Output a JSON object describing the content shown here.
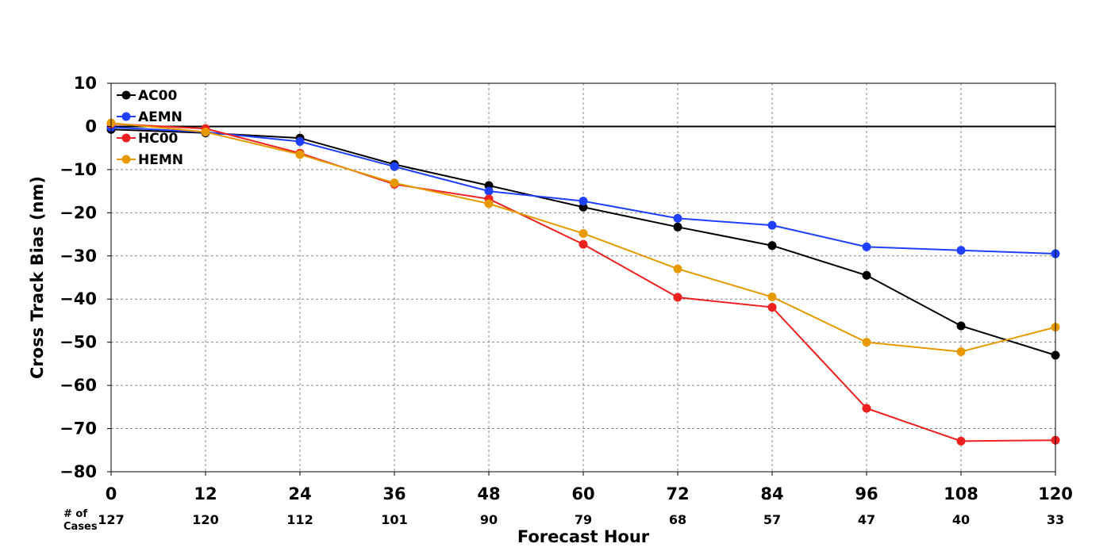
{
  "chart_data": {
    "type": "line",
    "title": "",
    "xlabel": "Forecast Hour",
    "ylabel": "Cross Track Bias (nm)",
    "x": [
      0,
      12,
      24,
      36,
      48,
      60,
      72,
      84,
      96,
      108,
      120
    ],
    "x_tick_labels": [
      "0",
      "12",
      "24",
      "36",
      "48",
      "60",
      "72",
      "84",
      "96",
      "108",
      "120"
    ],
    "xlim": [
      0,
      120
    ],
    "ylim": [
      -80,
      10
    ],
    "y_ticks": [
      10,
      0,
      -10,
      -20,
      -30,
      -40,
      -50,
      -60,
      -70,
      -80
    ],
    "y_tick_labels": [
      "10",
      "0",
      "−10",
      "−20",
      "−30",
      "−40",
      "−50",
      "−60",
      "−70",
      "−80"
    ],
    "grid": true,
    "legend_position": "top-left",
    "cases_label": [
      "# of",
      "Cases"
    ],
    "cases": [
      "127",
      "120",
      "112",
      "101",
      "90",
      "79",
      "68",
      "57",
      "47",
      "40",
      "33"
    ],
    "series": [
      {
        "name": "AC00",
        "color": "#000000",
        "values": [
          -0.7,
          -1.5,
          -2.7,
          -8.8,
          -13.7,
          -18.7,
          -23.3,
          -27.6,
          -34.5,
          -46.2,
          -53.0
        ]
      },
      {
        "name": "AEMN",
        "color": "#2040ff",
        "values": [
          -0.2,
          -1.3,
          -3.5,
          -9.3,
          -15.0,
          -17.3,
          -21.3,
          -22.9,
          -27.9,
          -28.7,
          -29.5
        ]
      },
      {
        "name": "HC00",
        "color": "#ee2020",
        "values": [
          0.6,
          -0.5,
          -6.2,
          -13.4,
          -16.8,
          -27.3,
          -39.6,
          -41.9,
          -65.3,
          -72.9,
          -72.7
        ]
      },
      {
        "name": "HEMN",
        "color": "#e69a00",
        "values": [
          0.8,
          -1.3,
          -6.5,
          -13.1,
          -17.9,
          -24.8,
          -33.0,
          -39.5,
          -50.0,
          -52.2,
          -46.5
        ]
      }
    ]
  }
}
